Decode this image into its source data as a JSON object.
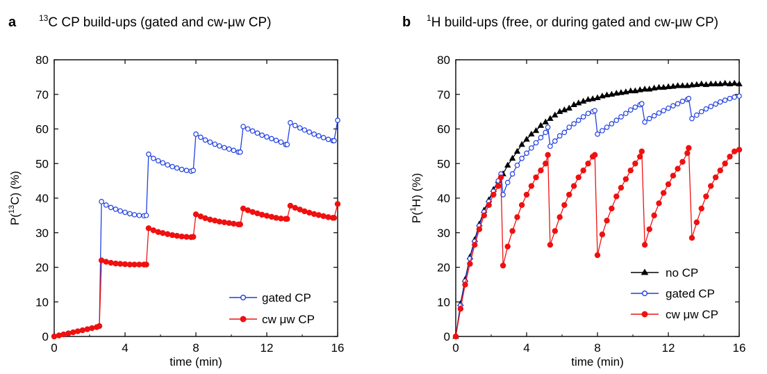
{
  "panels": [
    {
      "letter": "a",
      "title_sup": "13",
      "title_rest": "C CP build-ups (gated and cw-μw CP)"
    },
    {
      "letter": "b",
      "title_sup": "1",
      "title_rest": "H build-ups (free, or during gated and cw-μw CP)"
    }
  ],
  "colors": {
    "gated": "#1f3fe0",
    "cw": "#ef1010",
    "nocp": "#000000"
  },
  "chart_data": [
    {
      "type": "line",
      "xlabel": "time (min)",
      "ylabel_pre": "P(",
      "ylabel_sup": "13",
      "ylabel_post": "C) (%)",
      "xlim": [
        0,
        16
      ],
      "ylim": [
        0,
        80
      ],
      "xticks": [
        "0",
        "4",
        "8",
        "12",
        "16"
      ],
      "yticks": [
        "0",
        "10",
        "20",
        "30",
        "40",
        "50",
        "60",
        "70",
        "80"
      ],
      "legend_position": "bottom-right",
      "series": [
        {
          "name": "gated CP",
          "color_key": "gated",
          "marker": "open-circle",
          "x": [
            0,
            0.27,
            0.53,
            0.8,
            1.07,
            1.33,
            1.6,
            1.87,
            2.13,
            2.4,
            2.55,
            2.67,
            2.93,
            3.2,
            3.47,
            3.73,
            4.0,
            4.27,
            4.53,
            4.8,
            5.07,
            5.2,
            5.33,
            5.6,
            5.87,
            6.13,
            6.4,
            6.67,
            6.93,
            7.2,
            7.47,
            7.73,
            7.85,
            8.0,
            8.27,
            8.53,
            8.8,
            9.07,
            9.33,
            9.6,
            9.87,
            10.13,
            10.4,
            10.5,
            10.67,
            10.93,
            11.2,
            11.47,
            11.73,
            12.0,
            12.27,
            12.53,
            12.8,
            13.07,
            13.15,
            13.33,
            13.6,
            13.87,
            14.13,
            14.4,
            14.67,
            14.93,
            15.2,
            15.47,
            15.73,
            15.8,
            16.0
          ],
          "y": [
            0,
            0.3,
            0.6,
            0.9,
            1.2,
            1.5,
            1.8,
            2.1,
            2.4,
            2.7,
            3.0,
            39,
            38,
            37.3,
            36.8,
            36.3,
            35.9,
            35.5,
            35.2,
            35.0,
            34.9,
            35.0,
            52.7,
            51.5,
            50.8,
            50.2,
            49.6,
            49.1,
            48.7,
            48.3,
            48.0,
            47.8,
            48.0,
            58.5,
            57.6,
            56.8,
            56.2,
            55.6,
            55.1,
            54.6,
            54.2,
            53.8,
            53.3,
            53.3,
            60.7,
            60.0,
            59.4,
            58.8,
            58.2,
            57.7,
            57.2,
            56.7,
            56.2,
            55.5,
            55.5,
            61.8,
            61.0,
            60.3,
            59.7,
            59.1,
            58.5,
            58.0,
            57.5,
            57.0,
            56.6,
            56.6,
            62.5
          ]
        },
        {
          "name": "cw μw CP",
          "color_key": "cw",
          "marker": "filled-circle",
          "x": [
            0,
            0.27,
            0.53,
            0.8,
            1.07,
            1.33,
            1.6,
            1.87,
            2.13,
            2.4,
            2.55,
            2.67,
            2.93,
            3.2,
            3.47,
            3.73,
            4.0,
            4.27,
            4.53,
            4.8,
            5.07,
            5.2,
            5.33,
            5.6,
            5.87,
            6.13,
            6.4,
            6.67,
            6.93,
            7.2,
            7.47,
            7.73,
            7.85,
            8.0,
            8.27,
            8.53,
            8.8,
            9.07,
            9.33,
            9.6,
            9.87,
            10.13,
            10.4,
            10.5,
            10.67,
            10.93,
            11.2,
            11.47,
            11.73,
            12.0,
            12.27,
            12.53,
            12.8,
            13.07,
            13.15,
            13.33,
            13.6,
            13.87,
            14.13,
            14.4,
            14.67,
            14.93,
            15.2,
            15.47,
            15.73,
            15.8,
            16.0
          ],
          "y": [
            0,
            0.3,
            0.6,
            0.9,
            1.2,
            1.5,
            1.8,
            2.1,
            2.4,
            2.7,
            3.0,
            22.0,
            21.6,
            21.3,
            21.1,
            21.0,
            20.9,
            20.8,
            20.8,
            20.8,
            20.8,
            20.8,
            31.3,
            30.7,
            30.2,
            29.9,
            29.6,
            29.3,
            29.1,
            28.9,
            28.8,
            28.7,
            28.8,
            35.3,
            34.7,
            34.2,
            33.8,
            33.5,
            33.2,
            33.0,
            32.8,
            32.6,
            32.4,
            32.4,
            37.0,
            36.5,
            36.0,
            35.6,
            35.2,
            34.9,
            34.6,
            34.3,
            34.1,
            34.0,
            34.0,
            37.8,
            37.2,
            36.7,
            36.2,
            35.8,
            35.4,
            35.1,
            34.8,
            34.5,
            34.3,
            34.3,
            38.3
          ]
        }
      ]
    },
    {
      "type": "line",
      "xlabel": "time (min)",
      "ylabel_pre": "P(",
      "ylabel_sup": "1",
      "ylabel_post": "H) (%)",
      "xlim": [
        0,
        16
      ],
      "ylim": [
        0,
        80
      ],
      "xticks": [
        "0",
        "4",
        "8",
        "12",
        "16"
      ],
      "yticks": [
        "0",
        "10",
        "20",
        "30",
        "40",
        "50",
        "60",
        "70",
        "80"
      ],
      "legend_position": "bottom-right",
      "series": [
        {
          "name": "no CP",
          "color_key": "nocp",
          "marker": "filled-triangle",
          "x": [
            0,
            0.27,
            0.53,
            0.8,
            1.07,
            1.33,
            1.6,
            1.87,
            2.13,
            2.4,
            2.67,
            2.93,
            3.2,
            3.47,
            3.73,
            4.0,
            4.27,
            4.53,
            4.8,
            5.07,
            5.33,
            5.6,
            5.87,
            6.13,
            6.4,
            6.67,
            6.93,
            7.2,
            7.47,
            7.73,
            8.0,
            8.27,
            8.53,
            8.8,
            9.07,
            9.33,
            9.6,
            9.87,
            10.13,
            10.4,
            10.67,
            10.93,
            11.2,
            11.47,
            11.73,
            12.0,
            12.27,
            12.53,
            12.8,
            13.07,
            13.33,
            13.6,
            13.87,
            14.13,
            14.4,
            14.67,
            14.93,
            15.2,
            15.47,
            15.73,
            16.0
          ],
          "y": [
            0,
            9.5,
            16.5,
            23.0,
            28.0,
            32.5,
            36.5,
            39.5,
            42.5,
            45.0,
            47.0,
            49.5,
            51.5,
            53.5,
            55.5,
            57.0,
            58.5,
            59.5,
            61.0,
            62.0,
            63.0,
            64.0,
            65.0,
            65.5,
            66.0,
            67.0,
            67.5,
            68.0,
            68.5,
            68.7,
            69.0,
            69.5,
            69.8,
            70.0,
            70.3,
            70.5,
            70.7,
            71.0,
            71.0,
            71.3,
            71.5,
            71.5,
            71.8,
            72.0,
            72.0,
            72.2,
            72.3,
            72.5,
            72.5,
            72.5,
            72.7,
            72.8,
            73.0,
            72.8,
            73.0,
            73.0,
            73.0,
            73.2,
            73.0,
            73.2,
            73.0
          ]
        },
        {
          "name": "gated CP",
          "color_key": "gated",
          "marker": "open-circle",
          "x": [
            0,
            0.27,
            0.53,
            0.8,
            1.07,
            1.33,
            1.6,
            1.87,
            2.13,
            2.4,
            2.55,
            2.67,
            2.93,
            3.2,
            3.47,
            3.73,
            4.0,
            4.27,
            4.53,
            4.8,
            5.07,
            5.2,
            5.33,
            5.6,
            5.87,
            6.13,
            6.4,
            6.67,
            6.93,
            7.2,
            7.47,
            7.73,
            7.85,
            8.0,
            8.27,
            8.53,
            8.8,
            9.07,
            9.33,
            9.6,
            9.87,
            10.13,
            10.4,
            10.5,
            10.67,
            10.93,
            11.2,
            11.47,
            11.73,
            12.0,
            12.27,
            12.53,
            12.8,
            13.07,
            13.15,
            13.33,
            13.6,
            13.87,
            14.13,
            14.4,
            14.67,
            14.93,
            15.2,
            15.47,
            15.73,
            16.0
          ],
          "y": [
            0,
            9.0,
            16.0,
            22.5,
            27.5,
            32.0,
            36.0,
            39.0,
            42.0,
            45.0,
            47.0,
            41.0,
            44.5,
            47.0,
            49.5,
            51.5,
            53.0,
            54.5,
            56.0,
            57.5,
            59.0,
            60.5,
            55.0,
            56.5,
            58.0,
            59.0,
            60.5,
            61.5,
            62.5,
            63.5,
            64.5,
            65.0,
            65.3,
            58.5,
            59.5,
            60.5,
            61.5,
            62.5,
            63.5,
            64.5,
            65.5,
            66.3,
            67.0,
            67.3,
            62.0,
            63.0,
            63.8,
            64.6,
            65.3,
            66.0,
            66.7,
            67.3,
            68.0,
            68.5,
            68.8,
            63.0,
            64.0,
            65.0,
            65.8,
            66.5,
            67.2,
            67.8,
            68.3,
            68.8,
            69.2,
            69.5
          ]
        },
        {
          "name": "cw μw CP",
          "color_key": "cw",
          "marker": "filled-circle",
          "x": [
            0,
            0.27,
            0.53,
            0.8,
            1.07,
            1.33,
            1.6,
            1.87,
            2.13,
            2.4,
            2.55,
            2.67,
            2.93,
            3.2,
            3.47,
            3.73,
            4.0,
            4.27,
            4.53,
            4.8,
            5.07,
            5.2,
            5.33,
            5.6,
            5.87,
            6.13,
            6.4,
            6.67,
            6.93,
            7.2,
            7.47,
            7.73,
            7.85,
            8.0,
            8.27,
            8.53,
            8.8,
            9.07,
            9.33,
            9.6,
            9.87,
            10.13,
            10.4,
            10.5,
            10.67,
            10.93,
            11.2,
            11.47,
            11.73,
            12.0,
            12.27,
            12.53,
            12.8,
            13.07,
            13.15,
            13.33,
            13.6,
            13.87,
            14.13,
            14.4,
            14.67,
            14.93,
            15.2,
            15.47,
            15.73,
            16.0
          ],
          "y": [
            0,
            8.0,
            15.0,
            21.0,
            26.5,
            31.0,
            35.0,
            38.0,
            41.0,
            43.5,
            46.0,
            20.5,
            26.0,
            30.5,
            34.5,
            38.0,
            41.0,
            43.5,
            46.0,
            48.0,
            50.0,
            52.5,
            26.5,
            30.5,
            34.5,
            38.0,
            41.0,
            43.5,
            46.0,
            48.0,
            50.0,
            52.0,
            52.5,
            23.5,
            29.5,
            33.5,
            37.0,
            40.5,
            43.0,
            45.5,
            48.0,
            50.0,
            52.0,
            53.5,
            26.5,
            31.0,
            35.0,
            38.5,
            41.5,
            44.0,
            46.5,
            48.5,
            50.5,
            53.0,
            54.5,
            28.5,
            33.0,
            37.0,
            40.5,
            43.5,
            46.0,
            48.0,
            50.0,
            52.0,
            53.5,
            54.0
          ]
        }
      ]
    }
  ]
}
